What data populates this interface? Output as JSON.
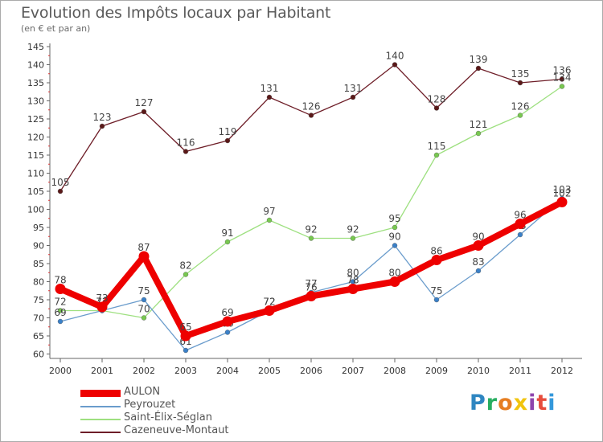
{
  "title": "Evolution des Impôts locaux par Habitant",
  "subtitle": "(en € et par an)",
  "logo": {
    "letters": [
      "P",
      "r",
      "o",
      "x",
      "i",
      "t",
      "i"
    ],
    "colors": [
      "#2e86c1",
      "#27ae60",
      "#e67e22",
      "#f1c40f",
      "#8e44ad",
      "#e74c3c",
      "#3498db"
    ]
  },
  "chart_data": {
    "type": "line",
    "x": [
      "2000",
      "2001",
      "2002",
      "2003",
      "2004",
      "2005",
      "2006",
      "2007",
      "2008",
      "2009",
      "2010",
      "2011",
      "2012"
    ],
    "ylim": [
      60,
      145
    ],
    "yticks": [
      60,
      65,
      70,
      75,
      80,
      85,
      90,
      95,
      100,
      105,
      110,
      115,
      120,
      125,
      130,
      135,
      140,
      145
    ],
    "grid": false,
    "legend_position": "bottom-left",
    "series": [
      {
        "name": "Cazeneuve-Montaut",
        "color": "#6e1e28",
        "point_color": "#5a1818",
        "values": [
          105,
          123,
          127,
          116,
          119,
          131,
          126,
          131,
          140,
          128,
          139,
          135,
          136
        ]
      },
      {
        "name": "Saint-Élix-Séglan",
        "color": "#9ee080",
        "point_color": "#78c850",
        "values": [
          72,
          72,
          70,
          82,
          91,
          97,
          92,
          92,
          95,
          115,
          121,
          126,
          134
        ]
      },
      {
        "name": "Peyrouzet",
        "color": "#6a9ccc",
        "point_color": "#3a80c8",
        "values": [
          69,
          72,
          75,
          61,
          66,
          72,
          77,
          80,
          90,
          75,
          83,
          93,
          103
        ]
      },
      {
        "name": "AULON",
        "color": "#ee0000",
        "point_color": "#ee0000",
        "values": [
          78,
          73,
          87,
          65,
          69,
          72,
          76,
          78,
          80,
          86,
          90,
          96,
          102
        ]
      }
    ],
    "legend_order": [
      "AULON",
      "Peyrouzet",
      "Saint-Élix-Séglan",
      "Cazeneuve-Montaut"
    ]
  }
}
